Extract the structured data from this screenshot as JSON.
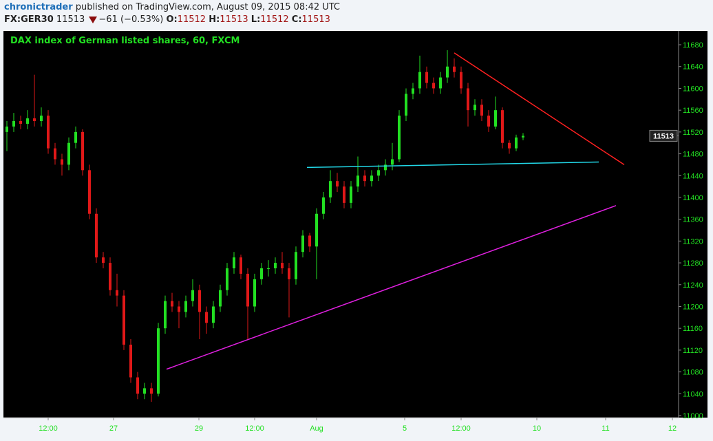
{
  "header": {
    "author": "chronictrader",
    "published_text": "published on TradingView.com, August 09, 2015 08:42 UTC",
    "symbol": "FX:GER30",
    "last": "11513",
    "change": "−61 (−0.53%)",
    "change_direction_icon": "triangle-down-icon",
    "o_label": "O:",
    "o": "11512",
    "h_label": "H:",
    "h": "11513",
    "l_label": "L:",
    "l": "11512",
    "c_label": "C:",
    "c": "11513"
  },
  "colors": {
    "up": "#22e022",
    "down": "#e01818",
    "background": "#000000",
    "axis_text": "#22e022",
    "resistance": "#ff2020",
    "support_flat": "#22d8e8",
    "support_rising": "#e020e0"
  },
  "chart_data": {
    "type": "candlestick",
    "title": "DAX index of German listed shares, 60, FXCM",
    "ylim": [
      10990,
      11700
    ],
    "y_ticks": [
      11000,
      11040,
      11080,
      11120,
      11160,
      11200,
      11240,
      11280,
      11320,
      11360,
      11400,
      11440,
      11480,
      11520,
      11560,
      11600,
      11640,
      11680
    ],
    "last_price_label": "11513",
    "x_ticks": [
      {
        "label": "12:00",
        "at": 6
      },
      {
        "label": "27",
        "at": 15.5
      },
      {
        "label": "29",
        "at": 27.9
      },
      {
        "label": "12:00",
        "at": 36
      },
      {
        "label": "Aug",
        "at": 45
      },
      {
        "label": "5",
        "at": 57.8
      },
      {
        "label": "12:00",
        "at": 66
      },
      {
        "label": "10",
        "at": 77
      },
      {
        "label": "11",
        "at": 87
      },
      {
        "label": "12",
        "at": 96.7
      }
    ],
    "ohlc": [
      [
        11520,
        11540,
        11485,
        11530
      ],
      [
        11530,
        11555,
        11520,
        11540
      ],
      [
        11540,
        11550,
        11525,
        11535
      ],
      [
        11535,
        11560,
        11525,
        11545
      ],
      [
        11545,
        11625,
        11530,
        11540
      ],
      [
        11540,
        11565,
        11530,
        11550
      ],
      [
        11550,
        11560,
        11480,
        11490
      ],
      [
        11490,
        11500,
        11460,
        11470
      ],
      [
        11470,
        11480,
        11440,
        11460
      ],
      [
        11460,
        11510,
        11450,
        11500
      ],
      [
        11500,
        11530,
        11490,
        11520
      ],
      [
        11520,
        11525,
        11440,
        11450
      ],
      [
        11450,
        11460,
        11360,
        11370
      ],
      [
        11370,
        11380,
        11280,
        11290
      ],
      [
        11290,
        11300,
        11270,
        11280
      ],
      [
        11280,
        11290,
        11220,
        11230
      ],
      [
        11230,
        11260,
        11200,
        11220
      ],
      [
        11220,
        11230,
        11120,
        11130
      ],
      [
        11130,
        11140,
        11060,
        11070
      ],
      [
        11070,
        11080,
        11030,
        11040
      ],
      [
        11040,
        11060,
        11030,
        11050
      ],
      [
        11050,
        11060,
        11025,
        11040
      ],
      [
        11040,
        11170,
        11035,
        11160
      ],
      [
        11160,
        11220,
        11150,
        11210
      ],
      [
        11210,
        11225,
        11190,
        11200
      ],
      [
        11200,
        11210,
        11160,
        11190
      ],
      [
        11190,
        11220,
        11180,
        11210
      ],
      [
        11210,
        11250,
        11200,
        11230
      ],
      [
        11230,
        11240,
        11140,
        11190
      ],
      [
        11190,
        11200,
        11150,
        11170
      ],
      [
        11170,
        11210,
        11160,
        11200
      ],
      [
        11200,
        11240,
        11190,
        11230
      ],
      [
        11230,
        11280,
        11220,
        11270
      ],
      [
        11270,
        11300,
        11260,
        11290
      ],
      [
        11290,
        11295,
        11250,
        11260
      ],
      [
        11260,
        11270,
        11140,
        11200
      ],
      [
        11200,
        11260,
        11190,
        11250
      ],
      [
        11250,
        11280,
        11240,
        11270
      ],
      [
        11270,
        11285,
        11255,
        11270
      ],
      [
        11270,
        11290,
        11260,
        11280
      ],
      [
        11280,
        11300,
        11260,
        11270
      ],
      [
        11270,
        11280,
        11180,
        11250
      ],
      [
        11250,
        11310,
        11240,
        11300
      ],
      [
        11300,
        11340,
        11290,
        11330
      ],
      [
        11330,
        11335,
        11300,
        11310
      ],
      [
        11310,
        11380,
        11250,
        11370
      ],
      [
        11370,
        11410,
        11360,
        11400
      ],
      [
        11400,
        11450,
        11390,
        11430
      ],
      [
        11430,
        11445,
        11410,
        11420
      ],
      [
        11420,
        11430,
        11380,
        11390
      ],
      [
        11390,
        11430,
        11380,
        11420
      ],
      [
        11420,
        11475,
        11410,
        11440
      ],
      [
        11440,
        11450,
        11420,
        11430
      ],
      [
        11430,
        11450,
        11420,
        11440
      ],
      [
        11440,
        11460,
        11430,
        11450
      ],
      [
        11450,
        11470,
        11440,
        11460
      ],
      [
        11460,
        11500,
        11450,
        11470
      ],
      [
        11470,
        11560,
        11465,
        11550
      ],
      [
        11550,
        11600,
        11540,
        11590
      ],
      [
        11590,
        11610,
        11580,
        11600
      ],
      [
        11600,
        11660,
        11590,
        11630
      ],
      [
        11630,
        11640,
        11600,
        11610
      ],
      [
        11610,
        11620,
        11590,
        11600
      ],
      [
        11600,
        11630,
        11590,
        11620
      ],
      [
        11620,
        11670,
        11610,
        11640
      ],
      [
        11640,
        11655,
        11620,
        11630
      ],
      [
        11630,
        11640,
        11590,
        11600
      ],
      [
        11600,
        11610,
        11530,
        11560
      ],
      [
        11560,
        11580,
        11550,
        11570
      ],
      [
        11570,
        11580,
        11540,
        11550
      ],
      [
        11550,
        11560,
        11520,
        11530
      ],
      [
        11530,
        11585,
        11525,
        11560
      ],
      [
        11560,
        11565,
        11490,
        11500
      ],
      [
        11500,
        11505,
        11480,
        11490
      ],
      [
        11490,
        11515,
        11485,
        11510
      ],
      [
        11510,
        11518,
        11505,
        11513
      ]
    ],
    "trend_lines": [
      {
        "kind": "resistance",
        "color": "#ff2020",
        "from": [
          65,
          11665
        ],
        "to": [
          89.7,
          11460
        ]
      },
      {
        "kind": "support_flat",
        "color": "#22d8e8",
        "from": [
          43.6,
          11455
        ],
        "to": [
          86,
          11465
        ]
      },
      {
        "kind": "support_rising",
        "color": "#e020e0",
        "from": [
          23.2,
          11085
        ],
        "to": [
          88.5,
          11385
        ]
      }
    ]
  }
}
